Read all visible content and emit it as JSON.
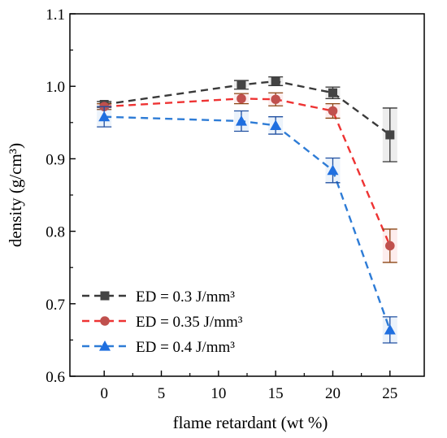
{
  "chart_data": {
    "type": "line",
    "xlabel": "flame retardant (wt %)",
    "ylabel": "density (g/cm³)",
    "xlim": [
      -3,
      28
    ],
    "ylim": [
      0.6,
      1.1
    ],
    "xticks": [
      0,
      5,
      10,
      15,
      20,
      25
    ],
    "yticks": [
      0.6,
      0.7,
      0.8,
      0.9,
      1.0,
      1.1
    ],
    "xtick_labels": [
      "0",
      "5",
      "10",
      "15",
      "20",
      "25"
    ],
    "ytick_labels": [
      "0.6",
      "0.7",
      "0.8",
      "0.9",
      "1.0",
      "1.1"
    ],
    "x": [
      0,
      12,
      15,
      20,
      25
    ],
    "grid": false,
    "legend_position": "bottom-left",
    "series": [
      {
        "name": "ED = 0.3 J/mm³",
        "marker": "square",
        "color": "#3a3a3a",
        "marker_color": "#444444",
        "errbar_color": "#333333",
        "values": [
          0.975,
          1.002,
          1.007,
          0.991,
          0.933
        ],
        "errors": [
          0.004,
          0.006,
          0.006,
          0.008,
          0.037
        ]
      },
      {
        "name": "ED = 0.35 J/mm³",
        "marker": "circle",
        "color": "#ee3333",
        "marker_color": "#c0504d",
        "errbar_color": "#8b4513",
        "values": [
          0.972,
          0.983,
          0.982,
          0.966,
          0.78
        ],
        "errors": [
          0.004,
          0.007,
          0.009,
          0.01,
          0.023
        ]
      },
      {
        "name": "ED = 0.4 J/mm³",
        "marker": "triangle",
        "color": "#2e7cd6",
        "marker_color": "#1f6fe0",
        "errbar_color": "#1f4fa0",
        "values": [
          0.958,
          0.952,
          0.946,
          0.884,
          0.664
        ],
        "errors": [
          0.014,
          0.014,
          0.012,
          0.017,
          0.018
        ]
      }
    ]
  }
}
